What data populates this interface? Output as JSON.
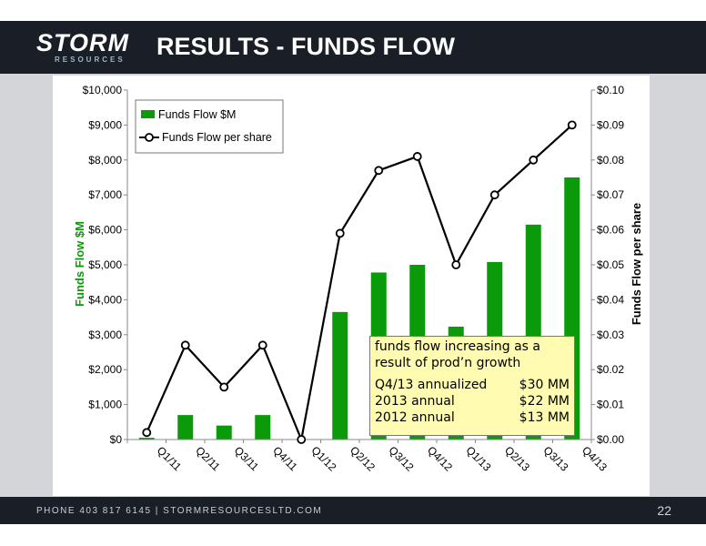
{
  "header": {
    "logo_main": "STORM",
    "logo_sub": "RESOURCES",
    "title": "RESULTS - FUNDS FLOW"
  },
  "footer": {
    "contact": "PHONE 403 817 6145  |  STORMRESOURCESLTD.COM",
    "page_number": "22"
  },
  "colors": {
    "bar": "#0a9a0a",
    "line": "#000000",
    "left_axis_label": "#0a9a0a"
  },
  "chart_data": {
    "type": "bar",
    "categories": [
      "Q1/11",
      "Q2/11",
      "Q3/11",
      "Q4/11",
      "Q1/12",
      "Q2/12",
      "Q3/12",
      "Q4/12",
      "Q1/13",
      "Q2/13",
      "Q3/13",
      "Q4/13"
    ],
    "series": [
      {
        "name": "Funds Flow $M",
        "axis": "left",
        "type": "bar",
        "values": [
          50,
          700,
          400,
          700,
          0,
          3650,
          4780,
          5000,
          3230,
          5080,
          6150,
          7500
        ]
      },
      {
        "name": "Funds Flow per share",
        "axis": "right",
        "type": "line",
        "values": [
          0.002,
          0.027,
          0.015,
          0.027,
          0.0,
          0.059,
          0.077,
          0.081,
          0.05,
          0.07,
          0.08,
          0.09
        ]
      }
    ],
    "ylabel": "Funds Flow $M",
    "y2label": "Funds Flow per share",
    "ylim": [
      0,
      10000
    ],
    "y2lim": [
      0,
      0.1
    ],
    "yticks": [
      "$0",
      "$1,000",
      "$2,000",
      "$3,000",
      "$4,000",
      "$5,000",
      "$6,000",
      "$7,000",
      "$8,000",
      "$9,000",
      "$10,000"
    ],
    "y2ticks": [
      "$0.00",
      "$0.01",
      "$0.02",
      "$0.03",
      "$0.04",
      "$0.05",
      "$0.06",
      "$0.07",
      "$0.08",
      "$0.09",
      "$0.10"
    ],
    "grid": false,
    "legend_position": "top-left",
    "annotation": {
      "headline": "funds flow increasing as a result of prod’n growth",
      "rows": [
        {
          "label": "Q4/13 annualized",
          "value": "$30 MM"
        },
        {
          "label": "2013 annual",
          "value": "$22 MM"
        },
        {
          "label": "2012 annual",
          "value": "$13 MM"
        }
      ]
    }
  }
}
